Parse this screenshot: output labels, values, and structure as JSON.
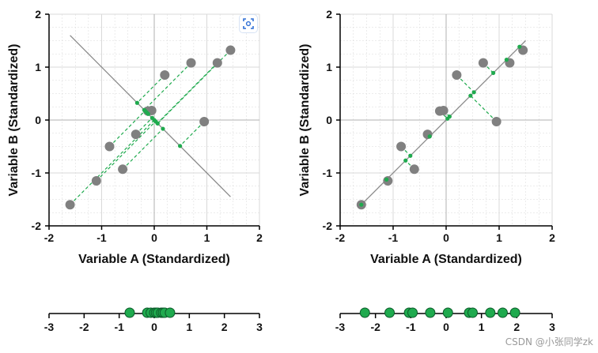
{
  "colors": {
    "point": "#808080",
    "projection": "#1faa4e",
    "line": "#8a8a8a",
    "grid": "#d9d9d9",
    "axis": "#000000"
  },
  "watermark": "CSDN @小张同学zk",
  "scan_icon": "scan-focus-icon",
  "chart_data": [
    {
      "type": "scatter",
      "title": "",
      "xlabel": "Variable A (Standardized)",
      "ylabel": "Variable B (Standardized)",
      "xlim": [
        -2,
        2
      ],
      "ylim": [
        -2,
        2
      ],
      "xticks": [
        "-2",
        "-1",
        "0",
        "1",
        "2"
      ],
      "yticks": [
        "-2",
        "-1",
        "0",
        "1",
        "2"
      ],
      "grid": true,
      "projection_line": {
        "from": [
          -1.6,
          1.6
        ],
        "to": [
          1.45,
          -1.45
        ],
        "style": "solid"
      },
      "points": [
        {
          "x": -1.6,
          "y": -1.6
        },
        {
          "x": -1.1,
          "y": -1.15
        },
        {
          "x": -0.85,
          "y": -0.5
        },
        {
          "x": -0.6,
          "y": -0.93
        },
        {
          "x": -0.35,
          "y": -0.27
        },
        {
          "x": -0.12,
          "y": 0.17
        },
        {
          "x": -0.05,
          "y": 0.18
        },
        {
          "x": 0.2,
          "y": 0.85
        },
        {
          "x": 0.7,
          "y": 1.08
        },
        {
          "x": 1.2,
          "y": 1.08
        },
        {
          "x": 1.45,
          "y": 1.32
        },
        {
          "x": 0.95,
          "y": -0.03
        }
      ]
    },
    {
      "type": "scatter",
      "title": "",
      "xlabel": "Variable A (Standardized)",
      "ylabel": "Variable B (Standardized)",
      "xlim": [
        -2,
        2
      ],
      "ylim": [
        -2,
        2
      ],
      "xticks": [
        "-2",
        "-1",
        "0",
        "1",
        "2"
      ],
      "yticks": [
        "-2",
        "-1",
        "0",
        "1",
        "2"
      ],
      "grid": true,
      "projection_line": {
        "from": [
          -1.6,
          -1.6
        ],
        "to": [
          1.5,
          1.5
        ],
        "style": "solid"
      },
      "points": [
        {
          "x": -1.6,
          "y": -1.6
        },
        {
          "x": -1.1,
          "y": -1.15
        },
        {
          "x": -0.85,
          "y": -0.5
        },
        {
          "x": -0.6,
          "y": -0.93
        },
        {
          "x": -0.35,
          "y": -0.27
        },
        {
          "x": -0.12,
          "y": 0.17
        },
        {
          "x": -0.05,
          "y": 0.18
        },
        {
          "x": 0.2,
          "y": 0.85
        },
        {
          "x": 0.7,
          "y": 1.08
        },
        {
          "x": 1.2,
          "y": 1.08
        },
        {
          "x": 1.45,
          "y": 1.32
        },
        {
          "x": 0.95,
          "y": -0.03
        }
      ]
    },
    {
      "type": "scatter",
      "title": "",
      "xlim": [
        -3,
        3
      ],
      "xticks": [
        "-3",
        "-2",
        "-1",
        "0",
        "1",
        "2",
        "3"
      ],
      "values": [
        -0.7,
        -0.2,
        -0.1,
        0.0,
        0.05,
        0.1,
        0.2,
        0.25,
        0.3,
        0.45
      ]
    },
    {
      "type": "scatter",
      "title": "",
      "xlim": [
        -3,
        3
      ],
      "xticks": [
        "-3",
        "-2",
        "-1",
        "0",
        "1",
        "2",
        "3"
      ],
      "values": [
        -2.3,
        -1.6,
        -1.05,
        -0.95,
        -0.45,
        0.05,
        0.65,
        0.75,
        1.25,
        1.6,
        1.95
      ]
    }
  ]
}
